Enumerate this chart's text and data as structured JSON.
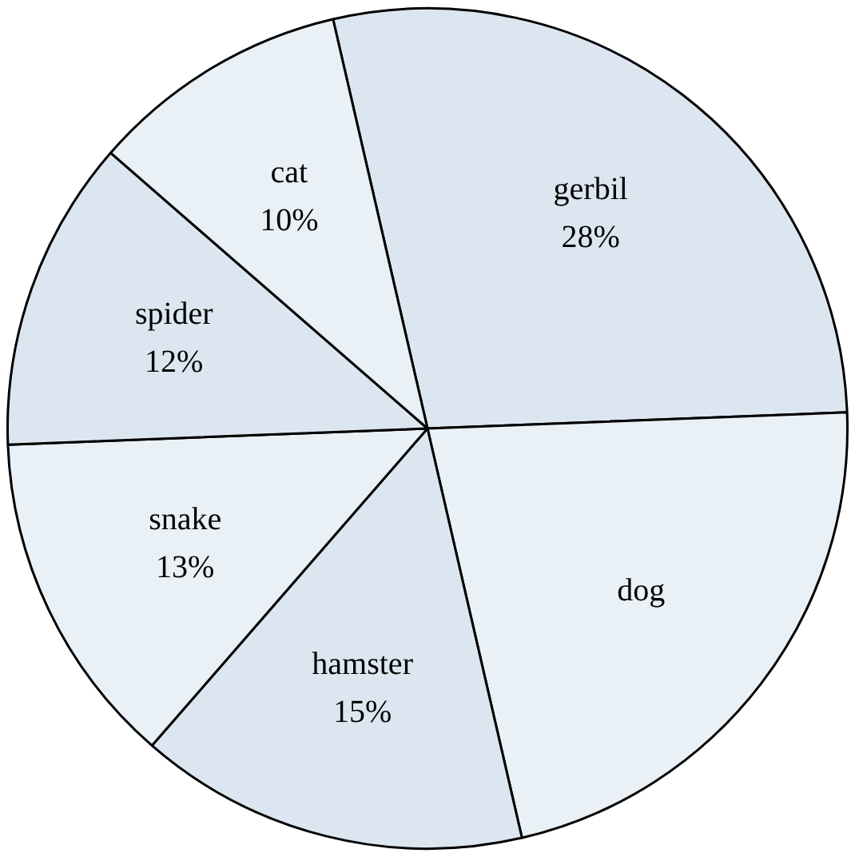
{
  "chart_data": {
    "type": "pie",
    "categories": [
      "gerbil",
      "dog",
      "hamster",
      "snake",
      "spider",
      "cat"
    ],
    "values": [
      28,
      22,
      15,
      13,
      12,
      10
    ],
    "value_labels": [
      "28%",
      null,
      "15%",
      "13%",
      "12%",
      "10%"
    ],
    "colors": [
      "#dce6f0",
      "#e9f0f6",
      "#dce6f0",
      "#e9f0f6",
      "#dce6f0",
      "#e9f0f6"
    ],
    "legend": false
  }
}
